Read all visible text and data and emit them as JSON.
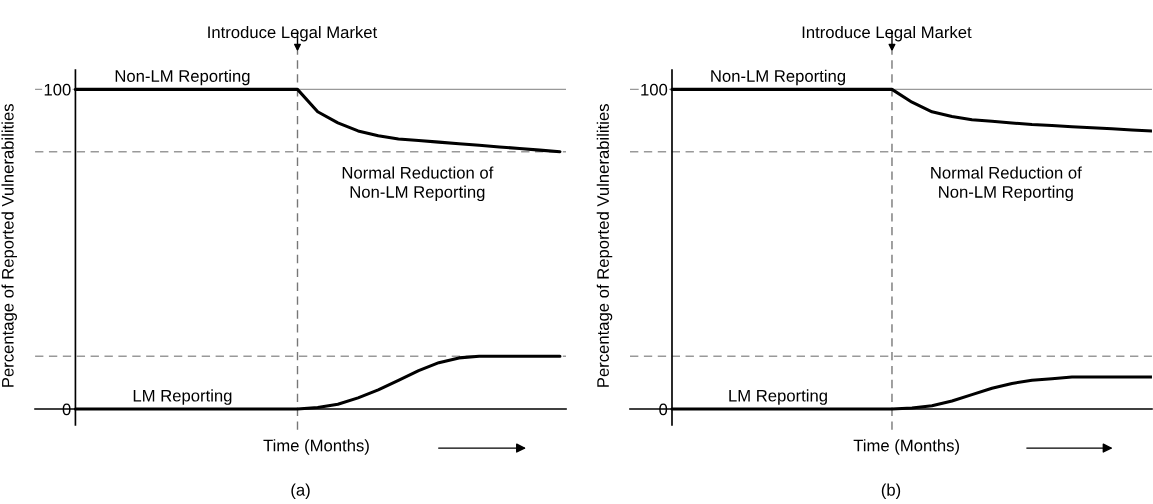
{
  "chart_data": [
    {
      "type": "line",
      "title": "(a)",
      "ylabel": "Percentage of Reported Vulnerabilities",
      "xlabel": "Time (Months)",
      "categories": [
        null,
        null,
        null,
        null,
        null,
        null,
        null,
        null,
        null,
        null,
        null,
        null,
        null,
        null,
        null,
        null,
        null,
        null,
        null,
        null,
        null,
        null,
        null,
        null,
        null
      ],
      "series": [
        {
          "name": "Non-LM Reporting",
          "color": "#000000",
          "values": [
            100,
            100,
            100,
            100,
            100,
            100,
            100,
            100,
            100,
            100,
            100,
            100,
            93,
            89.5,
            87,
            85.5,
            84.5,
            84,
            83.5,
            83,
            82.5,
            82,
            81.5,
            81,
            80.5
          ]
        },
        {
          "name": "LM Reporting",
          "color": "#000000",
          "values": [
            0,
            0,
            0,
            0,
            0,
            0,
            0,
            0,
            0,
            0,
            0,
            0,
            0.5,
            1.5,
            3.5,
            6,
            9,
            12,
            14.5,
            16,
            16.5,
            16.5,
            16.5,
            16.5,
            16.5
          ]
        }
      ],
      "ylim": [
        -5,
        106
      ],
      "yticks": [
        0,
        100
      ],
      "tick_labels": "y",
      "legend": false,
      "marker": "none",
      "line_style": "solid",
      "ref_lines": [
        {
          "axis": "y",
          "value": 100,
          "color": "#999999",
          "line_style": "solid"
        },
        {
          "axis": "y",
          "value": 80.5,
          "color": "#999999",
          "line_style": "dashed"
        },
        {
          "axis": "y",
          "value": 16.5,
          "color": "#999999",
          "line_style": "dashed"
        }
      ],
      "annotations": [
        "Normal Reduction of\nNon-LM Reporting",
        "Introduce Legal Market"
      ]
    },
    {
      "type": "line",
      "title": "(b)",
      "ylabel": "Percentage of Reported Vulnerabilities",
      "xlabel": "Time (Months)",
      "categories": [
        null,
        null,
        null,
        null,
        null,
        null,
        null,
        null,
        null,
        null,
        null,
        null,
        null,
        null,
        null,
        null,
        null,
        null,
        null,
        null,
        null,
        null,
        null,
        null,
        null
      ],
      "series": [
        {
          "name": "Non-LM Reporting",
          "color": "#000000",
          "values": [
            100,
            100,
            100,
            100,
            100,
            100,
            100,
            100,
            100,
            100,
            100,
            100,
            96,
            93,
            91.5,
            90.5,
            90,
            89.5,
            89,
            88.7,
            88.3,
            88,
            87.7,
            87.3,
            87
          ]
        },
        {
          "name": "LM Reporting",
          "color": "#000000",
          "values": [
            0,
            0,
            0,
            0,
            0,
            0,
            0,
            0,
            0,
            0,
            0,
            0,
            0.3,
            1,
            2.5,
            4.5,
            6.5,
            8,
            9,
            9.5,
            10,
            10,
            10,
            10,
            10
          ]
        }
      ],
      "ylim": [
        -5,
        106
      ],
      "yticks": [
        0,
        100
      ],
      "tick_labels": "y",
      "legend": false,
      "marker": "none",
      "line_style": "solid",
      "ref_lines": [
        {
          "axis": "y",
          "value": 100,
          "color": "#999999",
          "line_style": "solid"
        },
        {
          "axis": "y",
          "value": 80.5,
          "color": "#999999",
          "line_style": "dashed"
        },
        {
          "axis": "y",
          "value": 16.5,
          "color": "#999999",
          "line_style": "dashed"
        }
      ],
      "annotations": [
        "Normal Reduction of\nNon-LM Reporting",
        "Introduce Legal Market"
      ]
    }
  ]
}
